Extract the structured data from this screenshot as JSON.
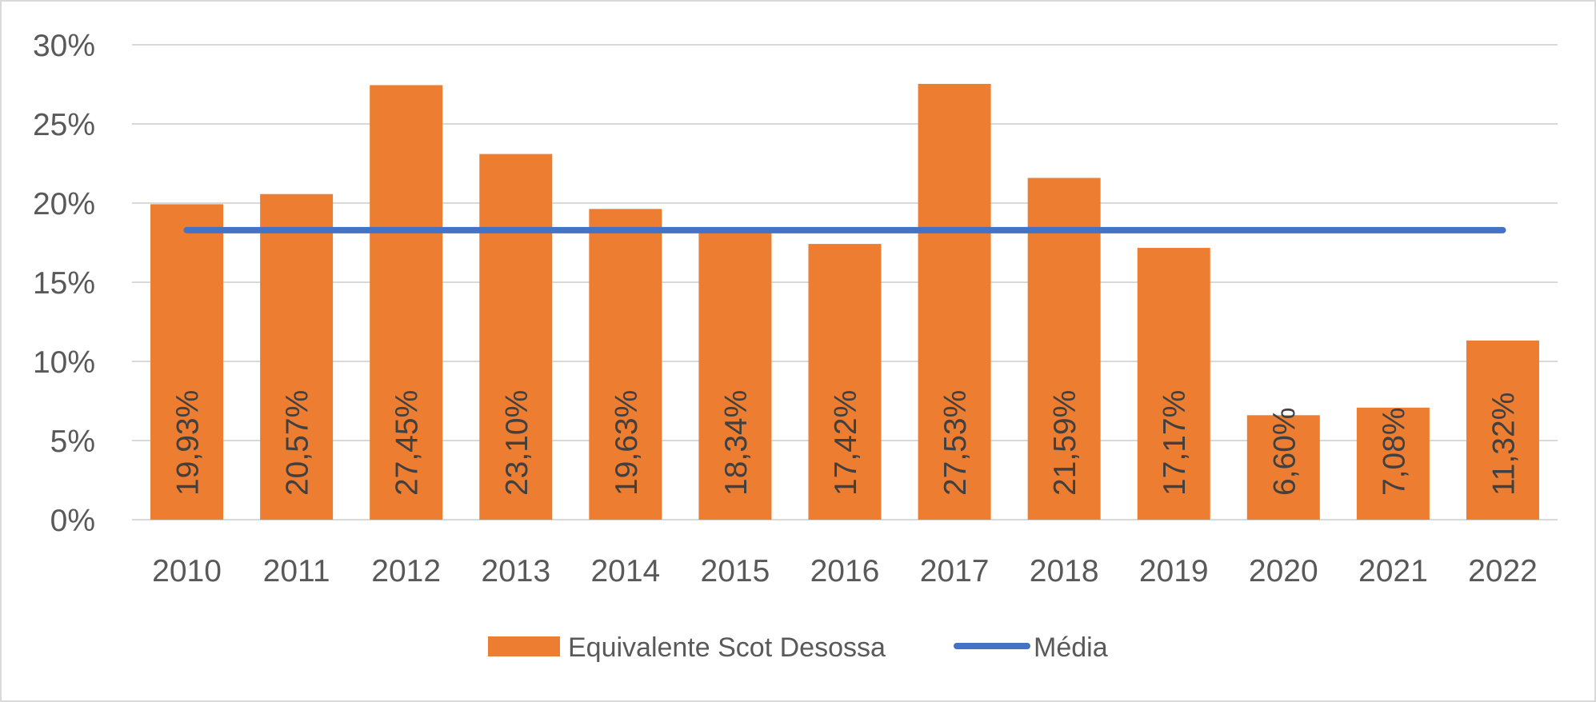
{
  "chart_data": {
    "type": "bar",
    "categories": [
      "2010",
      "2011",
      "2012",
      "2013",
      "2014",
      "2015",
      "2016",
      "2017",
      "2018",
      "2019",
      "2020",
      "2021",
      "2022"
    ],
    "series": [
      {
        "name": "Equivalente Scot Desossa",
        "type": "bar",
        "color": "#ED7D31",
        "values": [
          19.93,
          20.57,
          27.45,
          23.1,
          19.63,
          18.34,
          17.42,
          27.53,
          21.59,
          17.17,
          6.6,
          7.08,
          11.32
        ],
        "data_labels": [
          "19,93%",
          "20,57%",
          "27,45%",
          "23,10%",
          "19,63%",
          "18,34%",
          "17,42%",
          "27,53%",
          "21,59%",
          "17,17%",
          "6,60%",
          "7,08%",
          "11,32%"
        ]
      },
      {
        "name": "Média",
        "type": "line",
        "color": "#4472C4",
        "values": [
          18.29,
          18.29,
          18.29,
          18.29,
          18.29,
          18.29,
          18.29,
          18.29,
          18.29,
          18.29,
          18.29,
          18.29,
          18.29
        ]
      }
    ],
    "y_ticks": [
      0,
      5,
      10,
      15,
      20,
      25,
      30
    ],
    "y_tick_labels": [
      "0%",
      "5%",
      "10%",
      "15%",
      "20%",
      "25%",
      "30%"
    ],
    "ylim": [
      0,
      30
    ],
    "title": "",
    "xlabel": "",
    "ylabel": "",
    "grid": true,
    "legend": "bottom-center",
    "gridline_color": "#d9d9d9"
  }
}
